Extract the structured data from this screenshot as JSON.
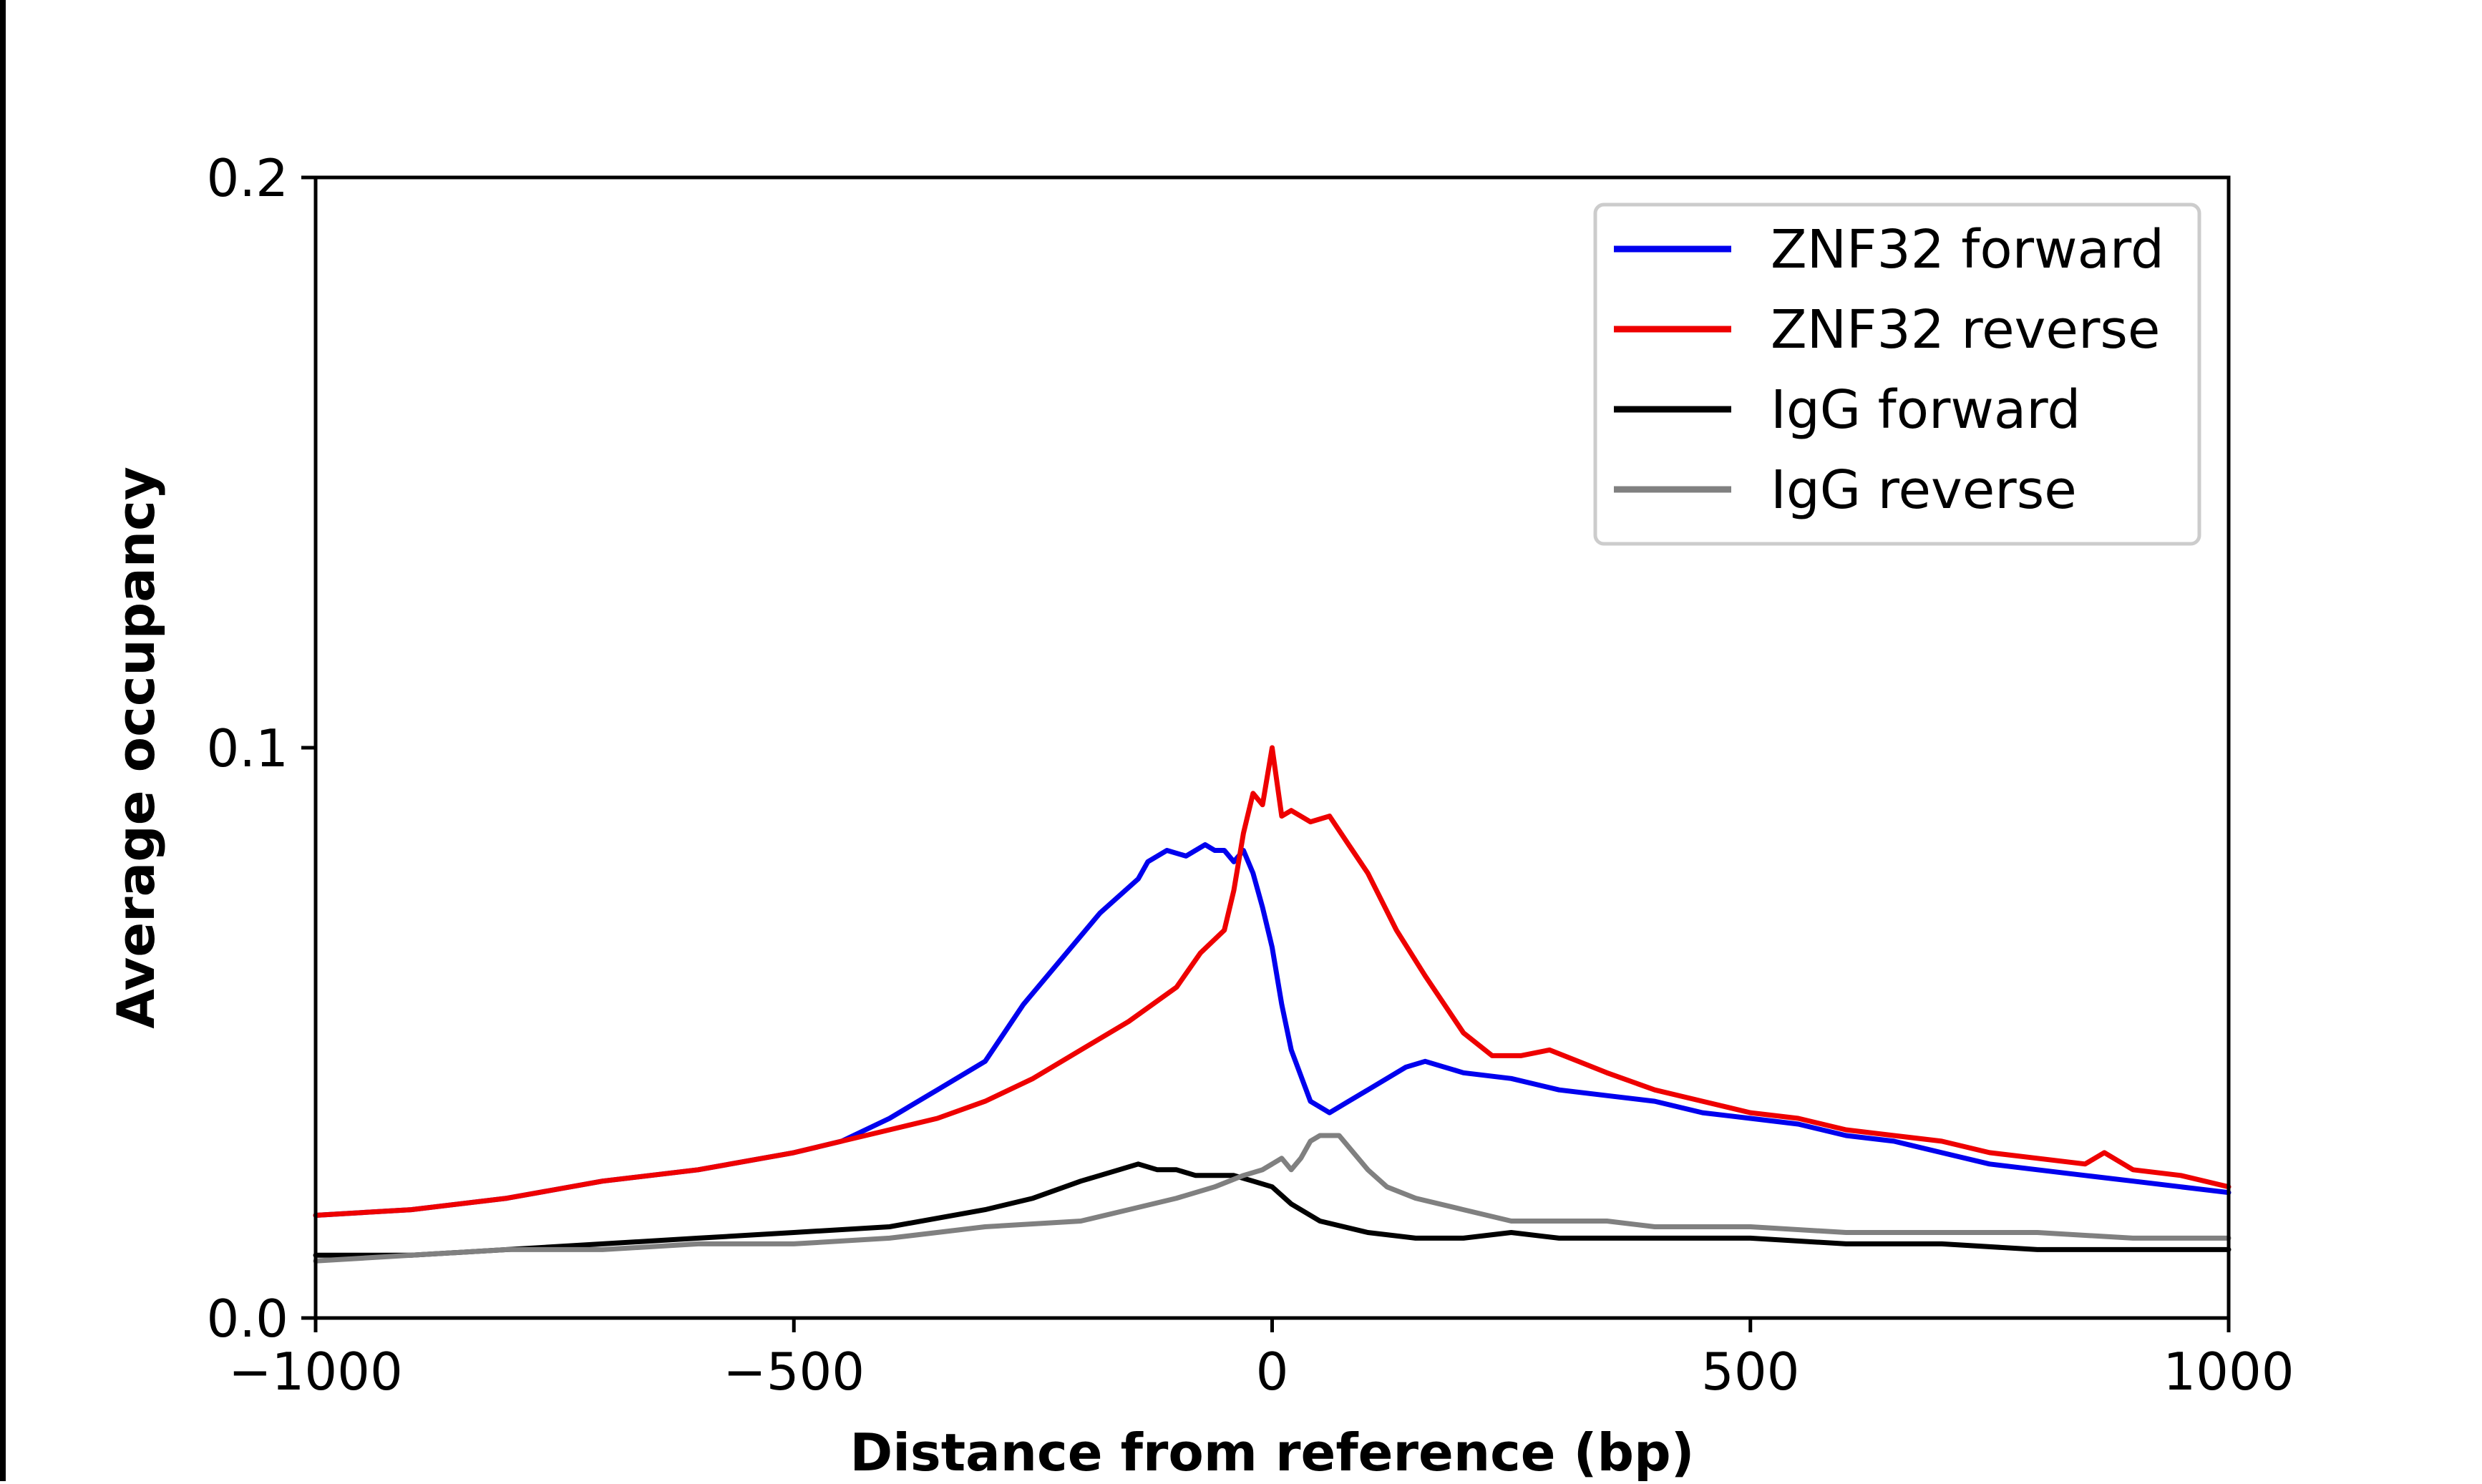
{
  "chart_data": {
    "type": "line",
    "title": "",
    "xlabel": "Distance from reference (bp)",
    "ylabel": "Average occupancy",
    "xlim": [
      -1000,
      1000
    ],
    "ylim": [
      0.0,
      0.2
    ],
    "xticks": [
      -1000,
      -500,
      0,
      500,
      1000
    ],
    "xtick_labels": [
      "−1000",
      "−500",
      "0",
      "500",
      "1000"
    ],
    "yticks": [
      0.0,
      0.1,
      0.2
    ],
    "ytick_labels": [
      "0.0",
      "0.1",
      "0.2"
    ],
    "grid": false,
    "legend_position": "top-right",
    "series": [
      {
        "name": "ZNF32 forward",
        "color": "#0000ee",
        "x": [
          -1000,
          -900,
          -800,
          -700,
          -600,
          -500,
          -450,
          -400,
          -350,
          -320,
          -300,
          -260,
          -220,
          -180,
          -140,
          -130,
          -110,
          -90,
          -70,
          -60,
          -50,
          -40,
          -30,
          -20,
          -10,
          0,
          10,
          20,
          40,
          60,
          80,
          100,
          120,
          140,
          160,
          180,
          200,
          250,
          300,
          350,
          400,
          450,
          500,
          550,
          600,
          650,
          700,
          750,
          800,
          850,
          900,
          950,
          1000
        ],
        "y": [
          0.018,
          0.019,
          0.021,
          0.024,
          0.026,
          0.029,
          0.031,
          0.035,
          0.04,
          0.043,
          0.045,
          0.055,
          0.063,
          0.071,
          0.077,
          0.08,
          0.082,
          0.081,
          0.083,
          0.082,
          0.082,
          0.08,
          0.082,
          0.078,
          0.072,
          0.065,
          0.055,
          0.047,
          0.038,
          0.036,
          0.038,
          0.04,
          0.042,
          0.044,
          0.045,
          0.044,
          0.043,
          0.042,
          0.04,
          0.039,
          0.038,
          0.036,
          0.035,
          0.034,
          0.032,
          0.031,
          0.029,
          0.027,
          0.026,
          0.025,
          0.024,
          0.023,
          0.022
        ]
      },
      {
        "name": "ZNF32 reverse",
        "color": "#ee0000",
        "x": [
          -1000,
          -900,
          -800,
          -700,
          -600,
          -500,
          -450,
          -400,
          -350,
          -300,
          -250,
          -200,
          -150,
          -100,
          -75,
          -50,
          -40,
          -30,
          -20,
          -10,
          0,
          5,
          10,
          20,
          40,
          60,
          80,
          100,
          130,
          160,
          200,
          230,
          260,
          290,
          320,
          350,
          400,
          450,
          500,
          550,
          600,
          650,
          700,
          750,
          800,
          850,
          870,
          900,
          950,
          1000
        ],
        "y": [
          0.018,
          0.019,
          0.021,
          0.024,
          0.026,
          0.029,
          0.031,
          0.033,
          0.035,
          0.038,
          0.042,
          0.047,
          0.052,
          0.058,
          0.064,
          0.068,
          0.075,
          0.085,
          0.092,
          0.09,
          0.1,
          0.094,
          0.088,
          0.089,
          0.087,
          0.088,
          0.083,
          0.078,
          0.068,
          0.06,
          0.05,
          0.046,
          0.046,
          0.047,
          0.045,
          0.043,
          0.04,
          0.038,
          0.036,
          0.035,
          0.033,
          0.032,
          0.031,
          0.029,
          0.028,
          0.027,
          0.029,
          0.026,
          0.025,
          0.023
        ]
      },
      {
        "name": "IgG forward",
        "color": "#000000",
        "x": [
          -1000,
          -900,
          -800,
          -700,
          -600,
          -500,
          -400,
          -300,
          -250,
          -200,
          -160,
          -140,
          -120,
          -100,
          -80,
          -60,
          -40,
          -20,
          0,
          20,
          50,
          100,
          150,
          200,
          250,
          300,
          400,
          500,
          600,
          700,
          800,
          900,
          1000
        ],
        "y": [
          0.011,
          0.011,
          0.012,
          0.013,
          0.014,
          0.015,
          0.016,
          0.019,
          0.021,
          0.024,
          0.026,
          0.027,
          0.026,
          0.026,
          0.025,
          0.025,
          0.025,
          0.024,
          0.023,
          0.02,
          0.017,
          0.015,
          0.014,
          0.014,
          0.015,
          0.014,
          0.014,
          0.014,
          0.013,
          0.013,
          0.012,
          0.012,
          0.012
        ]
      },
      {
        "name": "IgG reverse",
        "color": "#808080",
        "x": [
          -1000,
          -900,
          -800,
          -700,
          -600,
          -500,
          -400,
          -300,
          -200,
          -150,
          -100,
          -60,
          -30,
          -10,
          0,
          10,
          20,
          30,
          40,
          50,
          60,
          70,
          80,
          100,
          120,
          150,
          200,
          250,
          300,
          350,
          400,
          500,
          600,
          700,
          800,
          900,
          1000
        ],
        "y": [
          0.01,
          0.011,
          0.012,
          0.012,
          0.013,
          0.013,
          0.014,
          0.016,
          0.017,
          0.019,
          0.021,
          0.023,
          0.025,
          0.026,
          0.027,
          0.028,
          0.026,
          0.028,
          0.031,
          0.032,
          0.032,
          0.032,
          0.03,
          0.026,
          0.023,
          0.021,
          0.019,
          0.017,
          0.017,
          0.017,
          0.016,
          0.016,
          0.015,
          0.015,
          0.015,
          0.014,
          0.014
        ]
      }
    ]
  }
}
